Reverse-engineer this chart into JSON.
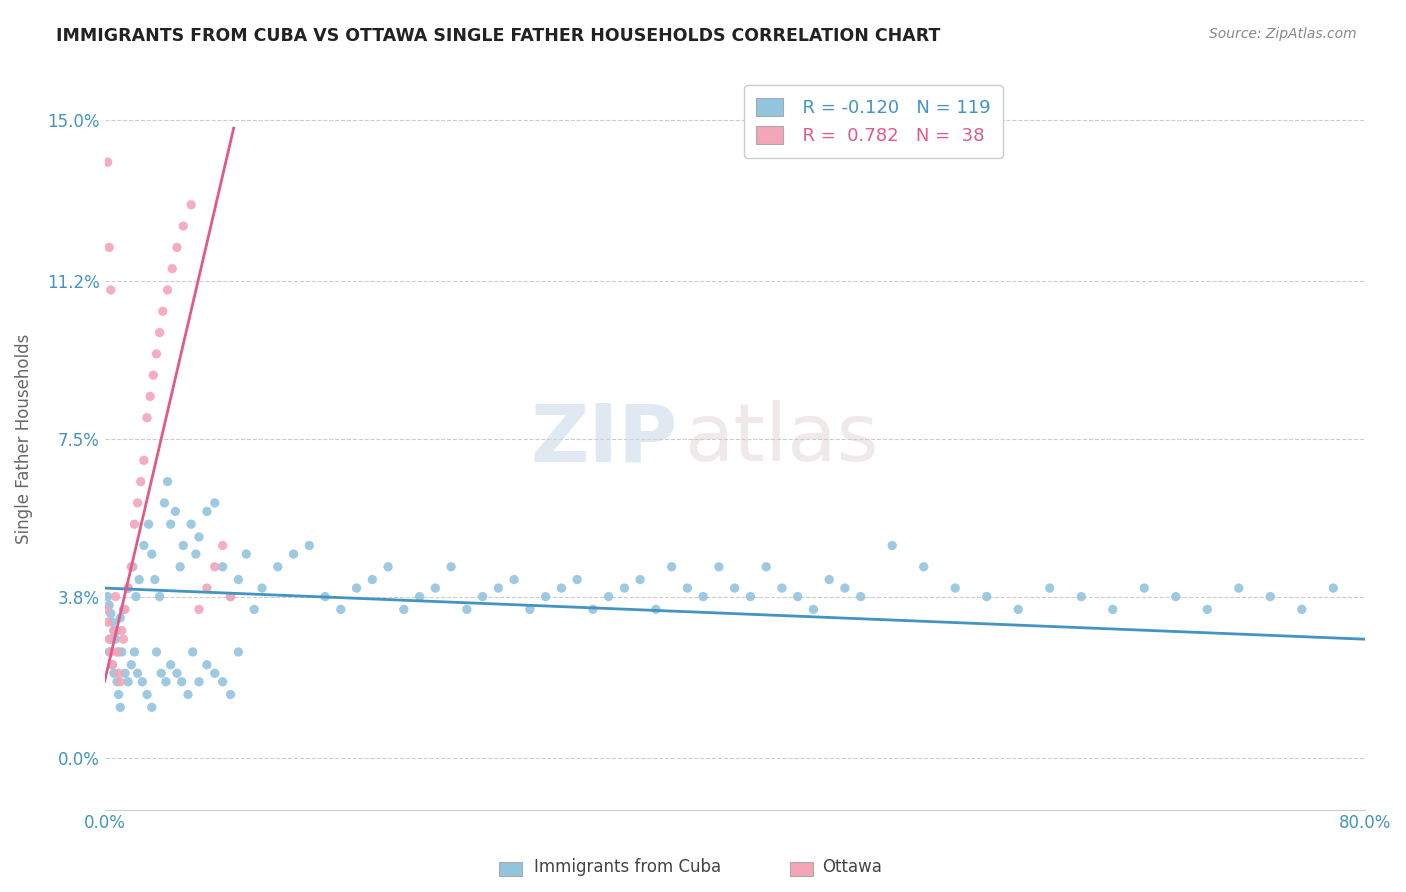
{
  "title": "IMMIGRANTS FROM CUBA VS OTTAWA SINGLE FATHER HOUSEHOLDS CORRELATION CHART",
  "source": "Source: ZipAtlas.com",
  "ylabel_label": "Single Father Households",
  "xlim": [
    0.0,
    0.8
  ],
  "ylim": [
    -0.012,
    0.162
  ],
  "yticks": [
    0.0,
    0.038,
    0.075,
    0.112,
    0.15
  ],
  "ytick_labels": [
    "0.0%",
    "3.8%",
    "7.5%",
    "11.2%",
    "15.0%"
  ],
  "xticks": [
    0.0,
    0.1,
    0.2,
    0.3,
    0.4,
    0.5,
    0.6,
    0.7,
    0.8
  ],
  "xtick_labels": [
    "0.0%",
    "",
    "",
    "",
    "",
    "",
    "",
    "",
    "80.0%"
  ],
  "legend_r1": "R = -0.120",
  "legend_n1": "N = 119",
  "legend_r2": "R =  0.782",
  "legend_n2": "N =  38",
  "color_blue": "#92c5de",
  "color_pink": "#f4a5b8",
  "color_blue_text": "#4393c3",
  "color_pink_text": "#e05a8a",
  "color_line_blue": "#4393c3",
  "color_line_pink": "#e05a8a",
  "watermark_zip": "ZIP",
  "watermark_atlas": "atlas",
  "legend_label_blue": "Immigrants from Cuba",
  "legend_label_pink": "Ottawa",
  "blue_scatter_x": [
    0.002,
    0.003,
    0.004,
    0.005,
    0.006,
    0.007,
    0.008,
    0.009,
    0.01,
    0.012,
    0.015,
    0.018,
    0.02,
    0.022,
    0.025,
    0.028,
    0.03,
    0.032,
    0.035,
    0.038,
    0.04,
    0.042,
    0.045,
    0.048,
    0.05,
    0.055,
    0.058,
    0.06,
    0.065,
    0.07,
    0.075,
    0.08,
    0.085,
    0.09,
    0.095,
    0.1,
    0.11,
    0.12,
    0.13,
    0.14,
    0.15,
    0.16,
    0.17,
    0.18,
    0.19,
    0.2,
    0.21,
    0.22,
    0.23,
    0.24,
    0.25,
    0.26,
    0.27,
    0.28,
    0.29,
    0.3,
    0.31,
    0.32,
    0.33,
    0.34,
    0.35,
    0.36,
    0.37,
    0.38,
    0.39,
    0.4,
    0.41,
    0.42,
    0.43,
    0.44,
    0.45,
    0.46,
    0.47,
    0.48,
    0.5,
    0.52,
    0.54,
    0.56,
    0.58,
    0.6,
    0.62,
    0.64,
    0.66,
    0.68,
    0.7,
    0.72,
    0.74,
    0.76,
    0.78,
    0.003,
    0.004,
    0.005,
    0.006,
    0.008,
    0.009,
    0.01,
    0.011,
    0.013,
    0.015,
    0.017,
    0.019,
    0.021,
    0.024,
    0.027,
    0.03,
    0.033,
    0.036,
    0.039,
    0.042,
    0.046,
    0.049,
    0.053,
    0.056,
    0.06,
    0.065,
    0.07,
    0.075,
    0.08,
    0.085
  ],
  "blue_scatter_y": [
    0.038,
    0.036,
    0.034,
    0.032,
    0.03,
    0.028,
    0.03,
    0.025,
    0.033,
    0.035,
    0.04,
    0.045,
    0.038,
    0.042,
    0.05,
    0.055,
    0.048,
    0.042,
    0.038,
    0.06,
    0.065,
    0.055,
    0.058,
    0.045,
    0.05,
    0.055,
    0.048,
    0.052,
    0.058,
    0.06,
    0.045,
    0.038,
    0.042,
    0.048,
    0.035,
    0.04,
    0.045,
    0.048,
    0.05,
    0.038,
    0.035,
    0.04,
    0.042,
    0.045,
    0.035,
    0.038,
    0.04,
    0.045,
    0.035,
    0.038,
    0.04,
    0.042,
    0.035,
    0.038,
    0.04,
    0.042,
    0.035,
    0.038,
    0.04,
    0.042,
    0.035,
    0.045,
    0.04,
    0.038,
    0.045,
    0.04,
    0.038,
    0.045,
    0.04,
    0.038,
    0.035,
    0.042,
    0.04,
    0.038,
    0.05,
    0.045,
    0.04,
    0.038,
    0.035,
    0.04,
    0.038,
    0.035,
    0.04,
    0.038,
    0.035,
    0.04,
    0.038,
    0.035,
    0.04,
    0.025,
    0.028,
    0.022,
    0.02,
    0.018,
    0.015,
    0.012,
    0.025,
    0.02,
    0.018,
    0.022,
    0.025,
    0.02,
    0.018,
    0.015,
    0.012,
    0.025,
    0.02,
    0.018,
    0.022,
    0.02,
    0.018,
    0.015,
    0.025,
    0.018,
    0.022,
    0.02,
    0.018,
    0.015,
    0.025
  ],
  "pink_scatter_x": [
    0.001,
    0.002,
    0.003,
    0.004,
    0.005,
    0.006,
    0.007,
    0.008,
    0.009,
    0.01,
    0.011,
    0.012,
    0.013,
    0.015,
    0.017,
    0.019,
    0.021,
    0.023,
    0.025,
    0.027,
    0.029,
    0.031,
    0.033,
    0.035,
    0.037,
    0.04,
    0.043,
    0.046,
    0.05,
    0.055,
    0.06,
    0.065,
    0.07,
    0.075,
    0.08,
    0.002,
    0.003,
    0.004
  ],
  "pink_scatter_y": [
    0.035,
    0.032,
    0.028,
    0.025,
    0.022,
    0.03,
    0.038,
    0.025,
    0.02,
    0.018,
    0.03,
    0.028,
    0.035,
    0.04,
    0.045,
    0.055,
    0.06,
    0.065,
    0.07,
    0.08,
    0.085,
    0.09,
    0.095,
    0.1,
    0.105,
    0.11,
    0.115,
    0.12,
    0.125,
    0.13,
    0.035,
    0.04,
    0.045,
    0.05,
    0.038,
    0.14,
    0.12,
    0.11
  ],
  "blue_trendline_x": [
    0.0,
    0.8
  ],
  "blue_trendline_y": [
    0.04,
    0.028
  ],
  "pink_trendline_x": [
    0.0,
    0.082
  ],
  "pink_trendline_y": [
    0.018,
    0.148
  ]
}
